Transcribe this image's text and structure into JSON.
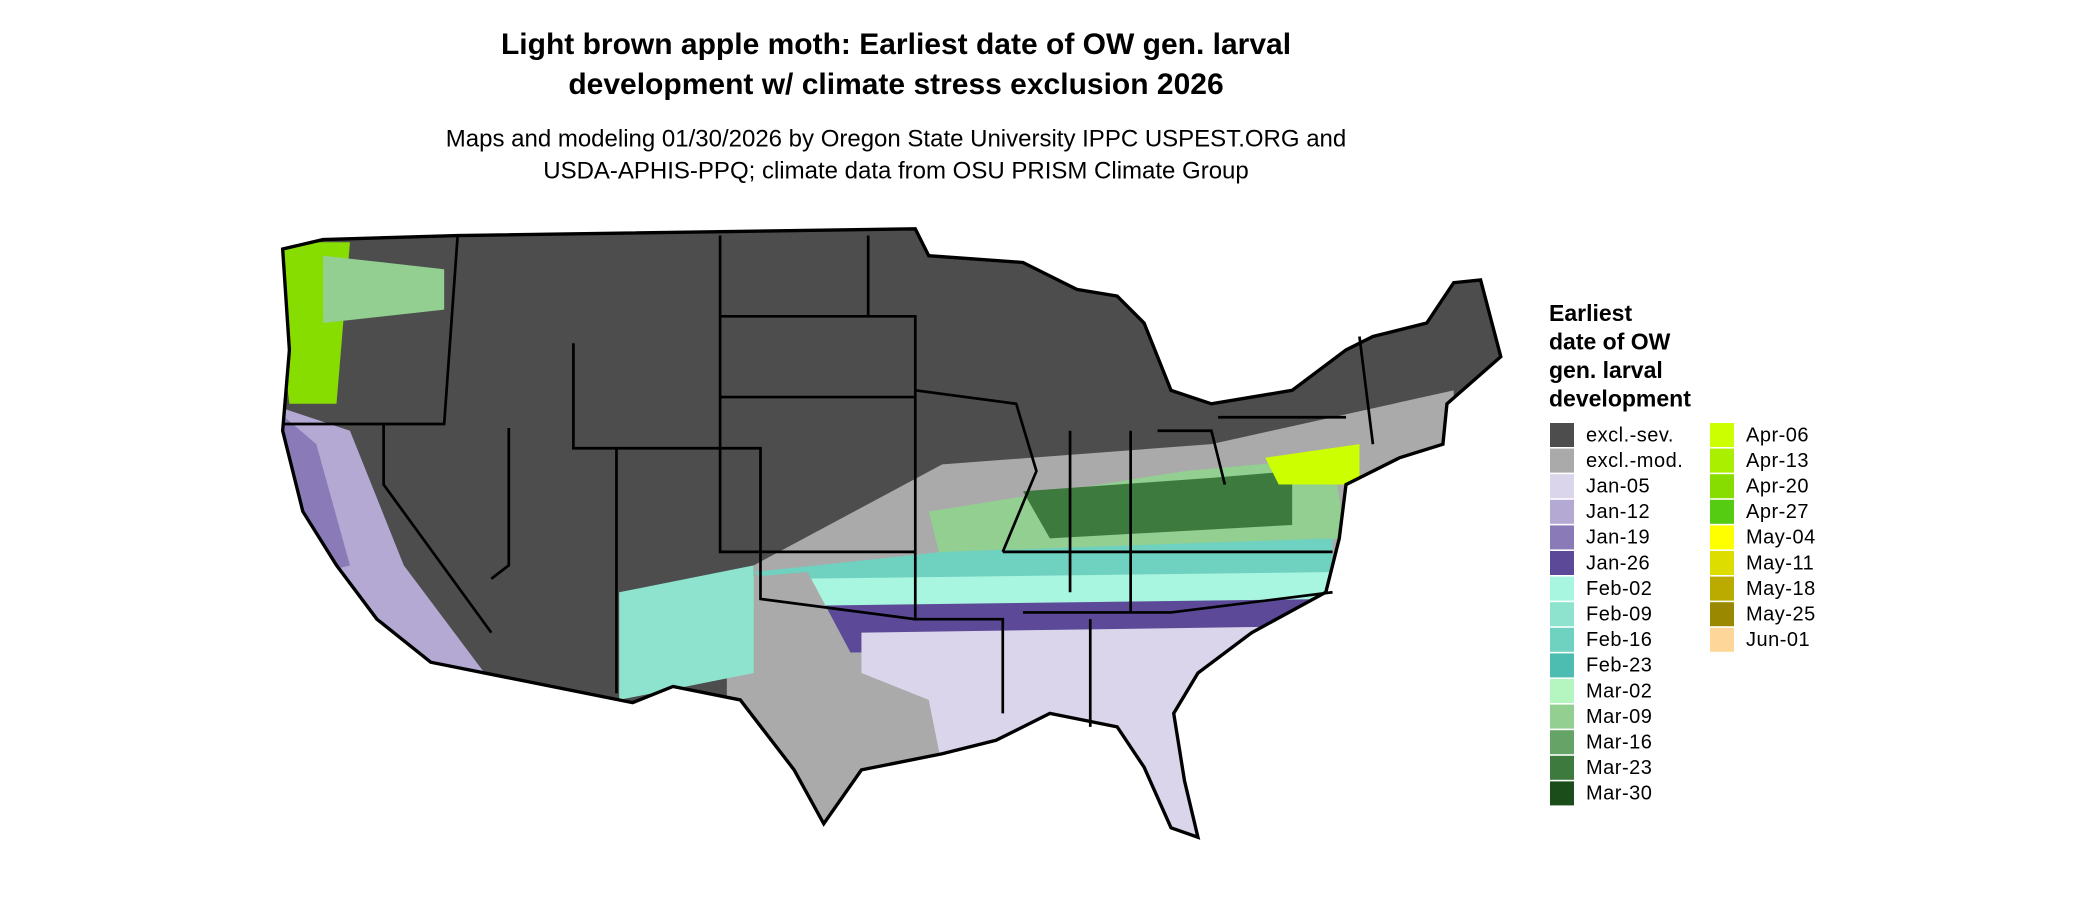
{
  "header": {
    "title": [
      "Light brown apple moth: Earliest date of OW gen. larval",
      "development w/ climate stress exclusion 2026"
    ],
    "subtitle": [
      "Maps and modeling 01/30/2026 by Oregon State University IPPC USPEST.ORG and",
      "USDA-APHIS-PPQ; climate data from OSU PRISM Climate Group"
    ]
  },
  "legend": {
    "title": [
      "Earliest",
      "date of OW",
      "gen. larval",
      "development"
    ],
    "items": [
      {
        "label": "excl.-sev.",
        "color": "#4d4d4d"
      },
      {
        "label": "excl.-mod.",
        "color": "#aaaaaa"
      },
      {
        "label": "Jan-05",
        "color": "#dad5ea"
      },
      {
        "label": "Jan-12",
        "color": "#b3a9d3"
      },
      {
        "label": "Jan-19",
        "color": "#8a7bb8"
      },
      {
        "label": "Jan-26",
        "color": "#5c4a99"
      },
      {
        "label": "Feb-02",
        "color": "#a8f5e0"
      },
      {
        "label": "Feb-09",
        "color": "#8ee3cf"
      },
      {
        "label": "Feb-16",
        "color": "#6fd1c0"
      },
      {
        "label": "Feb-23",
        "color": "#4dbdb2"
      },
      {
        "label": "Mar-02",
        "color": "#b5f5c0"
      },
      {
        "label": "Mar-09",
        "color": "#92cf91"
      },
      {
        "label": "Mar-16",
        "color": "#66a366"
      },
      {
        "label": "Mar-23",
        "color": "#3d7a3d"
      },
      {
        "label": "Mar-30",
        "color": "#1a4d1a"
      },
      {
        "label": "Apr-06",
        "color": "#ccff00"
      },
      {
        "label": "Apr-13",
        "color": "#aaee00"
      },
      {
        "label": "Apr-20",
        "color": "#88dd00"
      },
      {
        "label": "Apr-27",
        "color": "#55cc11"
      },
      {
        "label": "May-04",
        "color": "#ffff00"
      },
      {
        "label": "May-11",
        "color": "#dddd00"
      },
      {
        "label": "May-18",
        "color": "#bbaa00"
      },
      {
        "label": "May-25",
        "color": "#998800"
      },
      {
        "label": "Jun-01",
        "color": "#ffd699"
      }
    ]
  }
}
